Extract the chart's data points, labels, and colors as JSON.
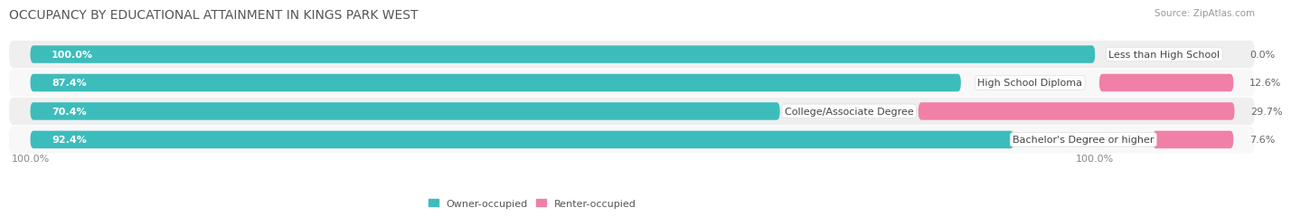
{
  "title": "OCCUPANCY BY EDUCATIONAL ATTAINMENT IN KINGS PARK WEST",
  "source": "Source: ZipAtlas.com",
  "categories": [
    "Less than High School",
    "High School Diploma",
    "College/Associate Degree",
    "Bachelor's Degree or higher"
  ],
  "owner_pct": [
    100.0,
    87.4,
    70.4,
    92.4
  ],
  "renter_pct": [
    0.0,
    12.6,
    29.7,
    7.6
  ],
  "owner_color": "#3DBCBC",
  "renter_color": "#F080A8",
  "row_bg_color_odd": "#EFEFEF",
  "row_bg_color_even": "#F8F8F8",
  "title_fontsize": 10,
  "source_fontsize": 7.5,
  "bar_label_fontsize": 8,
  "cat_label_fontsize": 8,
  "legend_fontsize": 8,
  "bar_height": 0.62,
  "figsize": [
    14.06,
    2.33
  ],
  "dpi": 100,
  "xlim_left": -2,
  "xlim_right": 115,
  "total_bar_width": 100
}
